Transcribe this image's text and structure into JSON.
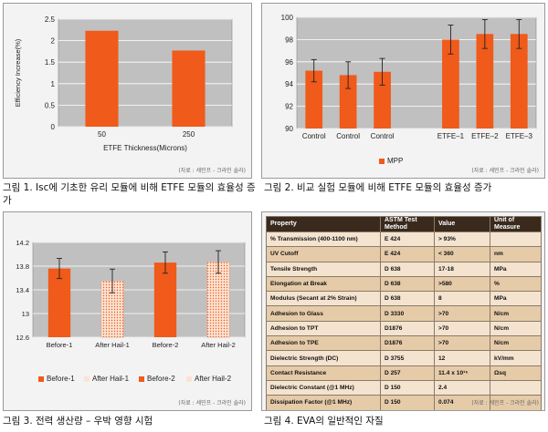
{
  "colors": {
    "bar": "#f05a1a",
    "bar_light": "#fbe3d3",
    "dots": "#f05a1a",
    "plot_bg": "#c0c0c0",
    "panel_bg": "#f3f3f3"
  },
  "chart_data": [
    {
      "type": "bar",
      "ylabel": "Efficiency Increase(%)",
      "xlabel": "ETFE Thickness(Microns)",
      "categories": [
        "50",
        "250"
      ],
      "values": [
        2.23,
        1.77
      ],
      "ylim": [
        0,
        2.5
      ],
      "yticks": [
        "0",
        "0.5",
        "1",
        "1.5",
        "2",
        "2.5"
      ],
      "grid": true,
      "source": "(자료 : 세민프 - 크라인 솔라)",
      "caption": "그림 1. Isc에 기초한 유리 모듈에 비해 ETFE 모듈의 효율성 증가"
    },
    {
      "type": "bar",
      "categories": [
        "Control",
        "Control",
        "Control",
        "",
        "ETFE–1",
        "ETFE–2",
        "ETFE–3"
      ],
      "values": [
        95.2,
        94.8,
        95.1,
        null,
        98.0,
        98.5,
        98.5
      ],
      "errors": [
        1.0,
        1.2,
        1.2,
        null,
        1.3,
        1.3,
        1.3
      ],
      "ylim": [
        90,
        100
      ],
      "yticks": [
        "90",
        "92",
        "94",
        "96",
        "98",
        "100"
      ],
      "legend": [
        "MPP"
      ],
      "grid": true,
      "source": "(자료 : 세민프 - 크라인 솔라)",
      "caption": "그림 2. 비교 실험 모듈에 비해 ETFE 모듈의 효율성 증가"
    },
    {
      "type": "bar",
      "categories": [
        "Before-1",
        "After Hail-1",
        "Before-2",
        "After Hail-2"
      ],
      "values": [
        13.76,
        13.55,
        13.86,
        13.87
      ],
      "errors": [
        0.17,
        0.2,
        0.18,
        0.19
      ],
      "ylim": [
        12.6,
        14.2
      ],
      "yticks": [
        "12.6",
        "13",
        "13.4",
        "13.8",
        "14.2"
      ],
      "legend": [
        "Before-1",
        "After Hail-1",
        "Before-2",
        "After Hail-2"
      ],
      "grid": true,
      "source": "(자료 : 세민프 - 크라인 솔라)",
      "caption": "그림 3. 전력 생산량 – 우박 영향 시험"
    },
    {
      "type": "table",
      "columns": [
        "Property",
        "ASTM Test Method",
        "Value",
        "Unit of Measure"
      ],
      "rows": [
        [
          "% Transmission (400-1100 nm)",
          "E 424",
          "> 93%",
          ""
        ],
        [
          "UV Cutoff",
          "E 424",
          "< 360",
          "nm"
        ],
        [
          "Tensile Strength",
          "D 638",
          "17-18",
          "MPa"
        ],
        [
          "Elongation at Break",
          "D 638",
          ">580",
          "%"
        ],
        [
          "Modulus (Secant at 2% Strain)",
          "D 638",
          "8",
          "MPa"
        ],
        [
          "Adhesion to Glass",
          "D 3330",
          ">70",
          "N/cm"
        ],
        [
          "Adhesion to TPT",
          "D1876",
          ">70",
          "N/cm"
        ],
        [
          "Adhesion to TPE",
          "D1876",
          ">70",
          "N/cm"
        ],
        [
          "Dielectric Strength (DC)",
          "D 3755",
          "12",
          "kV/mm"
        ],
        [
          "Contact Resistance",
          "D 257",
          "11.4 x 10¹⁵",
          "Ωsq"
        ],
        [
          "Dielectric Constant (@1 MHz)",
          "D 150",
          "2.4",
          ""
        ],
        [
          "Dissipation Factor (@1 MHz)",
          "D 150",
          "0.074",
          ""
        ]
      ],
      "source": "(자료 : 세민프 - 크라인 솔라)",
      "caption": "그림 4. EVA의 일반적인 자질"
    }
  ]
}
